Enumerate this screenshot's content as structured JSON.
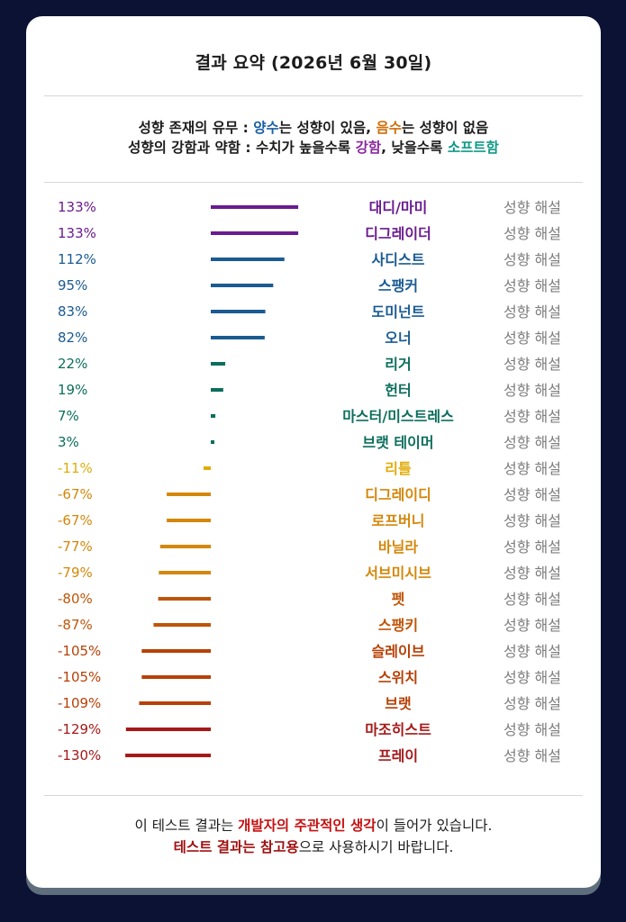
{
  "title": "결과 요약 (2026년 6월 30일)",
  "legend": {
    "line1": {
      "prefix": "성향 존재의 유무 : ",
      "positive": "양수",
      "mid": "는 성향이 있음, ",
      "negative": "음수",
      "suffix": "는 성향이 없음"
    },
    "line2": {
      "prefix": "성향의 강함과 약함 : 수치가 높을수록 ",
      "strong": "강함",
      "mid": ", 낮을수록 ",
      "soft": "소프트함"
    }
  },
  "explain_label": "성향 해설",
  "chart_data": {
    "type": "bar",
    "orientation": "horizontal",
    "baseline": 0,
    "value_unit": "%",
    "grid": false,
    "categories": [
      "대디/마미",
      "디그레이더",
      "사디스트",
      "스팽커",
      "도미넌트",
      "오너",
      "리거",
      "헌터",
      "마스터/미스트레스",
      "브랫 테이머",
      "리틀",
      "디그레이디",
      "로프버니",
      "바닐라",
      "서브미시브",
      "펫",
      "스팽키",
      "슬레이브",
      "스위치",
      "브랫",
      "마조히스트",
      "프레이"
    ],
    "values": [
      133,
      133,
      112,
      95,
      83,
      82,
      22,
      19,
      7,
      3,
      -11,
      -67,
      -67,
      -77,
      -79,
      -80,
      -87,
      -105,
      -105,
      -109,
      -129,
      -130
    ],
    "labels": [
      "133%",
      "133%",
      "112%",
      "95%",
      "83%",
      "82%",
      "22%",
      "19%",
      "7%",
      "3%",
      "-11%",
      "-67%",
      "-67%",
      "-77%",
      "-79%",
      "-80%",
      "-87%",
      "-105%",
      "-105%",
      "-109%",
      "-129%",
      "-130%"
    ],
    "colors": [
      "#6a1b8f",
      "#6a1b8f",
      "#1a5b92",
      "#1a5b92",
      "#1a5b92",
      "#1a5b92",
      "#0c6e5c",
      "#0c6e5c",
      "#0c6e5c",
      "#0c6e5c",
      "#e0ac0c",
      "#d4870a",
      "#d4870a",
      "#d4870a",
      "#d4870a",
      "#bf5508",
      "#bf5508",
      "#b84006",
      "#b84006",
      "#b84006",
      "#a51919",
      "#a51919"
    ]
  },
  "footer": {
    "line1": {
      "prefix": "이 테스트 결과는 ",
      "highlight": "개발자의 주관적인 생각",
      "suffix": "이 들어가 있습니다."
    },
    "line2": {
      "highlight": "테스트 결과는 참고용",
      "suffix": "으로 사용하시기 바랍니다."
    }
  }
}
